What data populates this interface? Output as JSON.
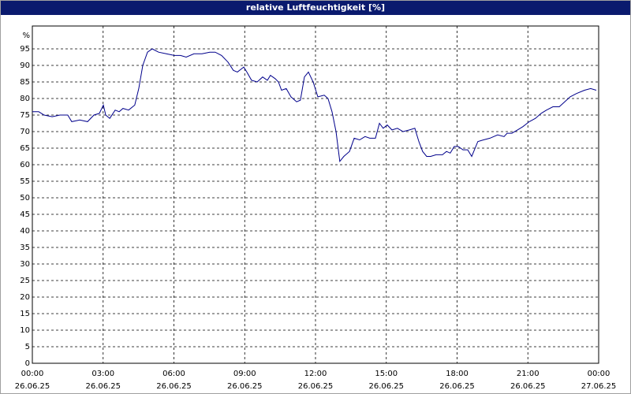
{
  "chart_data": {
    "type": "line",
    "title": "relative Luftfeuchtigkeit [%]",
    "y_unit": "%",
    "color": "#00008b",
    "grid": true,
    "ylim": [
      0,
      100
    ],
    "yticks": [
      0,
      5,
      10,
      15,
      20,
      25,
      30,
      35,
      40,
      45,
      50,
      55,
      60,
      65,
      70,
      75,
      80,
      85,
      90,
      95
    ],
    "xlim": [
      0,
      24
    ],
    "xticks": [
      {
        "value": 0,
        "label": "00:00",
        "date": "26.06.25"
      },
      {
        "value": 3,
        "label": "03:00",
        "date": "26.06.25"
      },
      {
        "value": 6,
        "label": "06:00",
        "date": "26.06.25"
      },
      {
        "value": 9,
        "label": "09:00",
        "date": "26.06.25"
      },
      {
        "value": 12,
        "label": "12:00",
        "date": "26.06.25"
      },
      {
        "value": 15,
        "label": "15:00",
        "date": "26.06.25"
      },
      {
        "value": 18,
        "label": "18:00",
        "date": "26.06.25"
      },
      {
        "value": 21,
        "label": "21:00",
        "date": "26.06.25"
      },
      {
        "value": 24,
        "label": "00:00",
        "date": "27.06.25"
      }
    ],
    "x": [
      0,
      0.27,
      0.5,
      0.84,
      1.17,
      1.5,
      1.67,
      2.01,
      2.34,
      2.61,
      2.84,
      3.01,
      3.11,
      3.28,
      3.51,
      3.68,
      3.84,
      4.08,
      4.34,
      4.51,
      4.68,
      4.88,
      5.08,
      5.35,
      5.68,
      6.02,
      6.28,
      6.52,
      6.85,
      7.19,
      7.52,
      7.75,
      8.02,
      8.29,
      8.52,
      8.69,
      8.96,
      9.09,
      9.29,
      9.53,
      9.76,
      9.96,
      10.09,
      10.29,
      10.43,
      10.56,
      10.76,
      10.96,
      11.2,
      11.36,
      11.53,
      11.7,
      11.9,
      12.1,
      12.37,
      12.53,
      12.7,
      12.87,
      13.03,
      13.2,
      13.44,
      13.64,
      13.87,
      14.1,
      14.3,
      14.54,
      14.71,
      14.87,
      15.04,
      15.24,
      15.47,
      15.71,
      15.98,
      16.21,
      16.38,
      16.54,
      16.71,
      16.88,
      17.11,
      17.38,
      17.55,
      17.71,
      17.88,
      18.05,
      18.25,
      18.45,
      18.62,
      18.88,
      19.12,
      19.39,
      19.72,
      19.99,
      20.12,
      20.32,
      20.56,
      20.79,
      21.06,
      21.32,
      21.56,
      21.79,
      22.06,
      22.33,
      22.56,
      22.79,
      23.06,
      23.4,
      23.66,
      23.9
    ],
    "values": [
      76,
      76,
      75,
      74.5,
      75,
      75,
      73,
      73.5,
      73,
      75,
      75.5,
      78,
      75,
      74,
      76.5,
      76,
      77,
      76.5,
      78,
      83,
      90,
      94,
      95,
      94,
      93.5,
      93,
      93,
      92.5,
      93.5,
      93.5,
      94,
      94,
      93,
      91,
      88.5,
      88,
      89.5,
      88,
      85.5,
      85,
      86.5,
      85.5,
      87,
      86,
      85,
      82.5,
      83,
      80.5,
      79,
      79.5,
      86.5,
      88,
      85,
      80.5,
      81,
      80,
      76,
      70,
      61,
      62.5,
      64,
      68,
      67.5,
      68.5,
      68,
      68,
      72.5,
      71,
      72,
      70.5,
      71,
      70,
      70.5,
      71,
      67,
      64,
      62.5,
      62.5,
      63,
      63,
      64,
      63.5,
      65.5,
      65.5,
      64.5,
      64.5,
      62.5,
      67,
      67.5,
      68,
      69,
      68.5,
      69.5,
      69.5,
      70.5,
      71.5,
      73,
      74,
      75.5,
      76.5,
      77.5,
      77.5,
      79,
      80.5,
      81.5,
      82.5,
      83,
      82.5
    ]
  }
}
